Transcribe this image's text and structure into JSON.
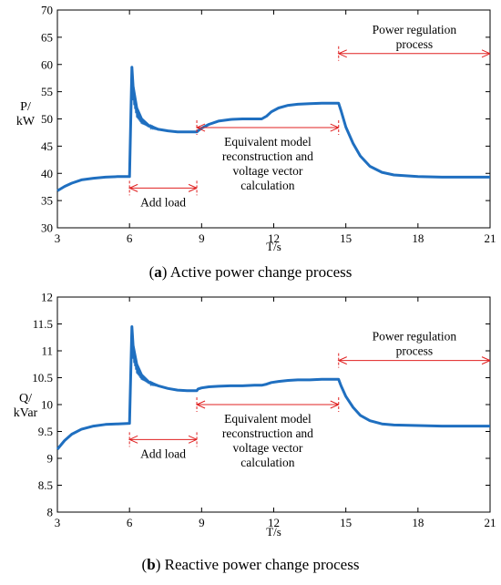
{
  "chart_data": [
    {
      "type": "line",
      "panel_letter": "a",
      "caption": "Active power change process",
      "xlabel": "T/s",
      "ylabel_line1": "P/",
      "ylabel_line2": "kW",
      "xlim": [
        3,
        21
      ],
      "ylim": [
        30,
        70
      ],
      "xticks": [
        3,
        6,
        9,
        12,
        15,
        18,
        21
      ],
      "yticks": [
        30,
        35,
        40,
        45,
        50,
        55,
        60,
        65,
        70
      ],
      "grid": false,
      "line_color": "#1f6fc0",
      "annotation_color": "#e02020",
      "series": [
        {
          "x": [
            3.0,
            3.3,
            3.6,
            4.0,
            4.5,
            5.0,
            5.5,
            6.0,
            6.1,
            6.15,
            6.3,
            6.5,
            6.8,
            7.2,
            7.6,
            8.0,
            8.4,
            8.8,
            8.85,
            9.0,
            9.3,
            9.7,
            10.2,
            10.7,
            11.2,
            11.5,
            11.7,
            11.9,
            12.2,
            12.6,
            13.0,
            13.5,
            14.0,
            14.5,
            14.7,
            14.8,
            15.0,
            15.3,
            15.6,
            16.0,
            16.5,
            17.0,
            18.0,
            19.0,
            20.0,
            21.0
          ],
          "y": [
            36.8,
            37.6,
            38.2,
            38.8,
            39.1,
            39.3,
            39.4,
            39.4,
            59.5,
            56.0,
            52.0,
            50.0,
            48.8,
            48.1,
            47.8,
            47.6,
            47.6,
            47.6,
            47.8,
            48.3,
            49.0,
            49.6,
            49.9,
            50.0,
            50.0,
            50.0,
            50.5,
            51.3,
            52.0,
            52.5,
            52.7,
            52.8,
            52.9,
            52.9,
            52.9,
            51.5,
            48.5,
            45.5,
            43.2,
            41.3,
            40.2,
            39.7,
            39.4,
            39.3,
            39.3,
            39.3
          ]
        }
      ],
      "annotations": [
        {
          "text": "Add load",
          "x1": 6.0,
          "x2": 8.8,
          "y": 37.3
        },
        {
          "text_lines": [
            "Equivalent model",
            "reconstruction and",
            "voltage vector",
            "calculation"
          ],
          "x1": 8.8,
          "x2": 14.7,
          "y": 48.4
        },
        {
          "text_lines": [
            "Power regulation",
            "process"
          ],
          "x1": 14.7,
          "x2": 21.0,
          "y": 62.0
        }
      ]
    },
    {
      "type": "line",
      "panel_letter": "b",
      "caption": "Reactive power change process",
      "xlabel": "T/s",
      "ylabel_line1": "Q/",
      "ylabel_line2": "kVar",
      "xlim": [
        3,
        21
      ],
      "ylim": [
        8,
        12
      ],
      "xticks": [
        3,
        6,
        9,
        12,
        15,
        18,
        21
      ],
      "yticks": [
        "8",
        "8.5",
        "9",
        "9.5",
        "10",
        "10.5",
        "11",
        "11.5",
        "12"
      ],
      "grid": false,
      "line_color": "#1f6fc0",
      "annotation_color": "#e02020",
      "series": [
        {
          "x": [
            3.0,
            3.3,
            3.6,
            4.0,
            4.5,
            5.0,
            5.5,
            6.0,
            6.1,
            6.15,
            6.3,
            6.5,
            6.8,
            7.2,
            7.6,
            8.0,
            8.4,
            8.8,
            8.85,
            9.0,
            9.3,
            9.7,
            10.2,
            10.7,
            11.2,
            11.5,
            11.7,
            11.9,
            12.2,
            12.6,
            13.0,
            13.5,
            14.0,
            14.5,
            14.7,
            14.8,
            15.0,
            15.3,
            15.6,
            16.0,
            16.5,
            17.0,
            18.0,
            19.0,
            20.0,
            21.0
          ],
          "y": [
            9.17,
            9.33,
            9.45,
            9.54,
            9.6,
            9.63,
            9.64,
            9.65,
            11.45,
            11.1,
            10.75,
            10.55,
            10.42,
            10.35,
            10.3,
            10.27,
            10.26,
            10.26,
            10.29,
            10.31,
            10.33,
            10.34,
            10.35,
            10.35,
            10.36,
            10.36,
            10.38,
            10.41,
            10.43,
            10.45,
            10.46,
            10.46,
            10.47,
            10.47,
            10.47,
            10.35,
            10.15,
            9.95,
            9.8,
            9.7,
            9.64,
            9.62,
            9.61,
            9.6,
            9.6,
            9.6
          ]
        }
      ],
      "annotations": [
        {
          "text": "Add load",
          "x1": 6.0,
          "x2": 8.8,
          "y": 9.35
        },
        {
          "text_lines": [
            "Equivalent model",
            "reconstruction and",
            "voltage vector",
            "calculation"
          ],
          "x1": 8.8,
          "x2": 14.7,
          "y": 10.0
        },
        {
          "text_lines": [
            "Power regulation",
            "process"
          ],
          "x1": 14.7,
          "x2": 21.0,
          "y": 10.82
        }
      ]
    }
  ]
}
